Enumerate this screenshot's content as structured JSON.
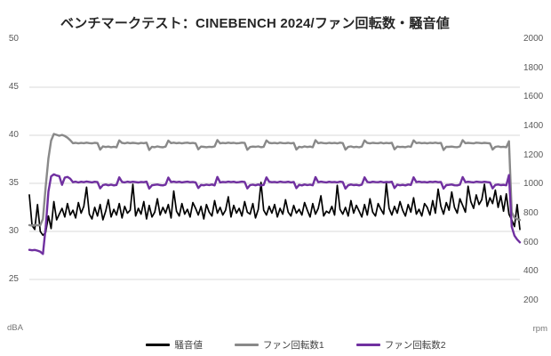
{
  "title": "ベンチマークテスト：CINEBENCH 2024/ファン回転数・騒音値",
  "chart_data": {
    "type": "line",
    "title": "ベンチマークテスト：CINEBENCH 2024/ファン回転数・騒音値",
    "x_axis": {
      "labels_shown": false,
      "description": "time (unlabeled)"
    },
    "left_axis": {
      "unit": "dBA",
      "ticks": [
        "50",
        "45",
        "40",
        "35",
        "30",
        "25"
      ],
      "tick_values": [
        50,
        45,
        40,
        35,
        30,
        25
      ],
      "range": [
        22.5,
        50
      ]
    },
    "right_axis": {
      "unit": "rpm",
      "ticks": [
        "2000",
        "1800",
        "1600",
        "1400",
        "1200",
        "1000",
        "800",
        "600",
        "400",
        "200"
      ],
      "tick_values": [
        2000,
        1800,
        1600,
        1400,
        1200,
        1000,
        800,
        600,
        400,
        200
      ],
      "range": [
        200,
        2000
      ]
    },
    "gridline_values_dBA": [
      45,
      40,
      35,
      30,
      25
    ],
    "gridline_color": "#d9d9d9",
    "legend_position": "bottom",
    "legend": [
      "騒音値",
      "ファン回転数1",
      "ファン回転数2"
    ],
    "series": [
      {
        "name": "騒音値",
        "axis": "left",
        "unit": "dBA",
        "color": "#000000",
        "width": 1.7,
        "values": [
          33.8,
          30.6,
          30.2,
          32.8,
          30.0,
          29.6,
          29.9,
          31.6,
          30.3,
          33.1,
          31.2,
          31.8,
          32.4,
          31.5,
          32.9,
          31.7,
          32.2,
          31.4,
          33.0,
          31.9,
          32.6,
          34.6,
          31.8,
          31.3,
          32.5,
          31.6,
          32.8,
          31.2,
          32.1,
          33.3,
          31.5,
          32.3,
          31.7,
          32.9,
          31.4,
          32.6,
          31.9,
          32.2,
          34.9,
          31.6,
          32.4,
          31.8,
          33.1,
          31.3,
          32.7,
          31.5,
          32.0,
          33.4,
          31.7,
          32.5,
          31.9,
          32.8,
          31.4,
          34.2,
          32.1,
          31.6,
          32.9,
          31.8,
          32.3,
          31.5,
          33.0,
          32.4,
          31.7,
          32.6,
          31.3,
          32.8,
          32.0,
          31.6,
          33.2,
          31.9,
          32.5,
          31.7,
          32.2,
          33.6,
          31.5,
          32.7,
          31.9,
          32.4,
          31.6,
          33.1,
          32.0,
          31.8,
          32.9,
          31.4,
          32.3,
          35.1,
          32.2,
          31.7,
          32.6,
          31.9,
          32.8,
          31.5,
          32.4,
          31.8,
          33.3,
          32.0,
          31.6,
          32.7,
          31.9,
          32.3,
          31.7,
          33.0,
          32.2,
          31.5,
          32.9,
          31.8,
          32.4,
          33.7,
          31.6,
          32.1,
          31.9,
          32.6,
          31.7,
          34.8,
          32.3,
          31.8,
          32.5,
          31.6,
          33.2,
          31.9,
          32.7,
          32.1,
          31.5,
          32.8,
          31.7,
          33.4,
          32.0,
          31.6,
          32.9,
          32.3,
          31.8,
          35.0,
          32.4,
          31.7,
          32.6,
          31.9,
          33.1,
          32.2,
          31.6,
          32.8,
          32.0,
          33.5,
          31.8,
          32.3,
          31.6,
          32.9,
          32.5,
          31.7,
          33.2,
          31.9,
          34.4,
          32.6,
          31.8,
          33.0,
          32.2,
          34.1,
          32.5,
          31.9,
          33.4,
          32.7,
          32.0,
          34.7,
          33.1,
          32.4,
          33.8,
          32.8,
          33.3,
          34.9,
          32.6,
          33.5,
          32.9,
          34.3,
          32.5,
          33.7,
          32.1,
          33.9,
          31.8,
          31.2,
          30.5,
          32.8,
          30.2
        ]
      },
      {
        "name": "ファン回転数1",
        "axis": "right",
        "unit": "rpm",
        "color": "#898989",
        "width": 2.4,
        "values": [
          721,
          718,
          722,
          719,
          720,
          764,
          985,
          1180,
          1302,
          1348,
          1342,
          1336,
          1341,
          1334,
          1322,
          1305,
          1284,
          1287,
          1283,
          1286,
          1284,
          1288,
          1285,
          1283,
          1287,
          1285,
          1240,
          1262,
          1258,
          1261,
          1257,
          1260,
          1256,
          1304,
          1286,
          1283,
          1288,
          1284,
          1287,
          1285,
          1282,
          1286,
          1284,
          1288,
          1238,
          1260,
          1257,
          1262,
          1258,
          1256,
          1261,
          1302,
          1285,
          1288,
          1284,
          1287,
          1283,
          1286,
          1288,
          1284,
          1286,
          1283,
          1242,
          1261,
          1259,
          1257,
          1260,
          1258,
          1262,
          1306,
          1283,
          1286,
          1284,
          1288,
          1285,
          1287,
          1283,
          1285,
          1288,
          1286,
          1239,
          1258,
          1261,
          1259,
          1262,
          1257,
          1260,
          1303,
          1287,
          1284,
          1286,
          1283,
          1288,
          1285,
          1284,
          1287,
          1283,
          1286,
          1241,
          1260,
          1256,
          1262,
          1258,
          1261,
          1257,
          1305,
          1284,
          1288,
          1285,
          1283,
          1287,
          1284,
          1286,
          1283,
          1288,
          1285,
          1240,
          1259,
          1262,
          1257,
          1260,
          1256,
          1261,
          1303,
          1286,
          1283,
          1287,
          1285,
          1284,
          1288,
          1283,
          1286,
          1284,
          1287,
          1242,
          1261,
          1258,
          1260,
          1257,
          1262,
          1259,
          1304,
          1285,
          1288,
          1284,
          1286,
          1283,
          1287,
          1285,
          1288,
          1284,
          1286,
          1238,
          1260,
          1259,
          1261,
          1258,
          1257,
          1262,
          1305,
          1284,
          1287,
          1285,
          1283,
          1288,
          1286,
          1284,
          1287,
          1285,
          1283,
          1241,
          1259,
          1262,
          1258,
          1260,
          1257,
          1298,
          810,
          772,
          762,
          756
        ]
      },
      {
        "name": "ファン回転数2",
        "axis": "right",
        "unit": "rpm",
        "color": "#7030a0",
        "width": 2.4,
        "values": [
          551,
          548,
          550,
          545,
          538,
          522,
          705,
          952,
          1056,
          1070,
          1062,
          1058,
          998,
          1048,
          1052,
          1040,
          1016,
          1020,
          1014,
          1019,
          1016,
          1021,
          1018,
          1015,
          1019,
          1017,
          974,
          996,
          1000,
          995,
          999,
          994,
          997,
          1050,
          1018,
          1015,
          1020,
          1016,
          1019,
          1017,
          1014,
          1018,
          1016,
          1020,
          972,
          995,
          998,
          1000,
          996,
          994,
          999,
          1048,
          1017,
          1020,
          1016,
          1019,
          1015,
          1018,
          1020,
          1016,
          1018,
          1015,
          976,
          997,
          995,
          999,
          996,
          1000,
          994,
          1052,
          1015,
          1018,
          1016,
          1020,
          1017,
          1019,
          1015,
          1017,
          1020,
          1018,
          973,
          996,
          999,
          995,
          1000,
          994,
          997,
          1049,
          1019,
          1016,
          1018,
          1015,
          1020,
          1017,
          1016,
          1019,
          1015,
          1018,
          975,
          998,
          994,
          1000,
          996,
          999,
          995,
          1051,
          1016,
          1020,
          1017,
          1015,
          1019,
          1016,
          1018,
          1015,
          1020,
          1017,
          972,
          995,
          1000,
          996,
          998,
          994,
          999,
          1049,
          1018,
          1015,
          1019,
          1017,
          1016,
          1020,
          1015,
          1018,
          1016,
          1019,
          976,
          999,
          995,
          998,
          994,
          1000,
          997,
          1050,
          1017,
          1020,
          1016,
          1018,
          1015,
          1019,
          1017,
          1020,
          1016,
          1018,
          972,
          996,
          998,
          1000,
          995,
          994,
          999,
          1051,
          1016,
          1019,
          1017,
          1015,
          1020,
          1018,
          1016,
          1019,
          1017,
          1015,
          974,
          997,
          1000,
          996,
          998,
          995,
          1065,
          710,
          648,
          622,
          602
        ]
      }
    ]
  },
  "unit_labels": {
    "left": "dBA",
    "right": "rpm"
  }
}
